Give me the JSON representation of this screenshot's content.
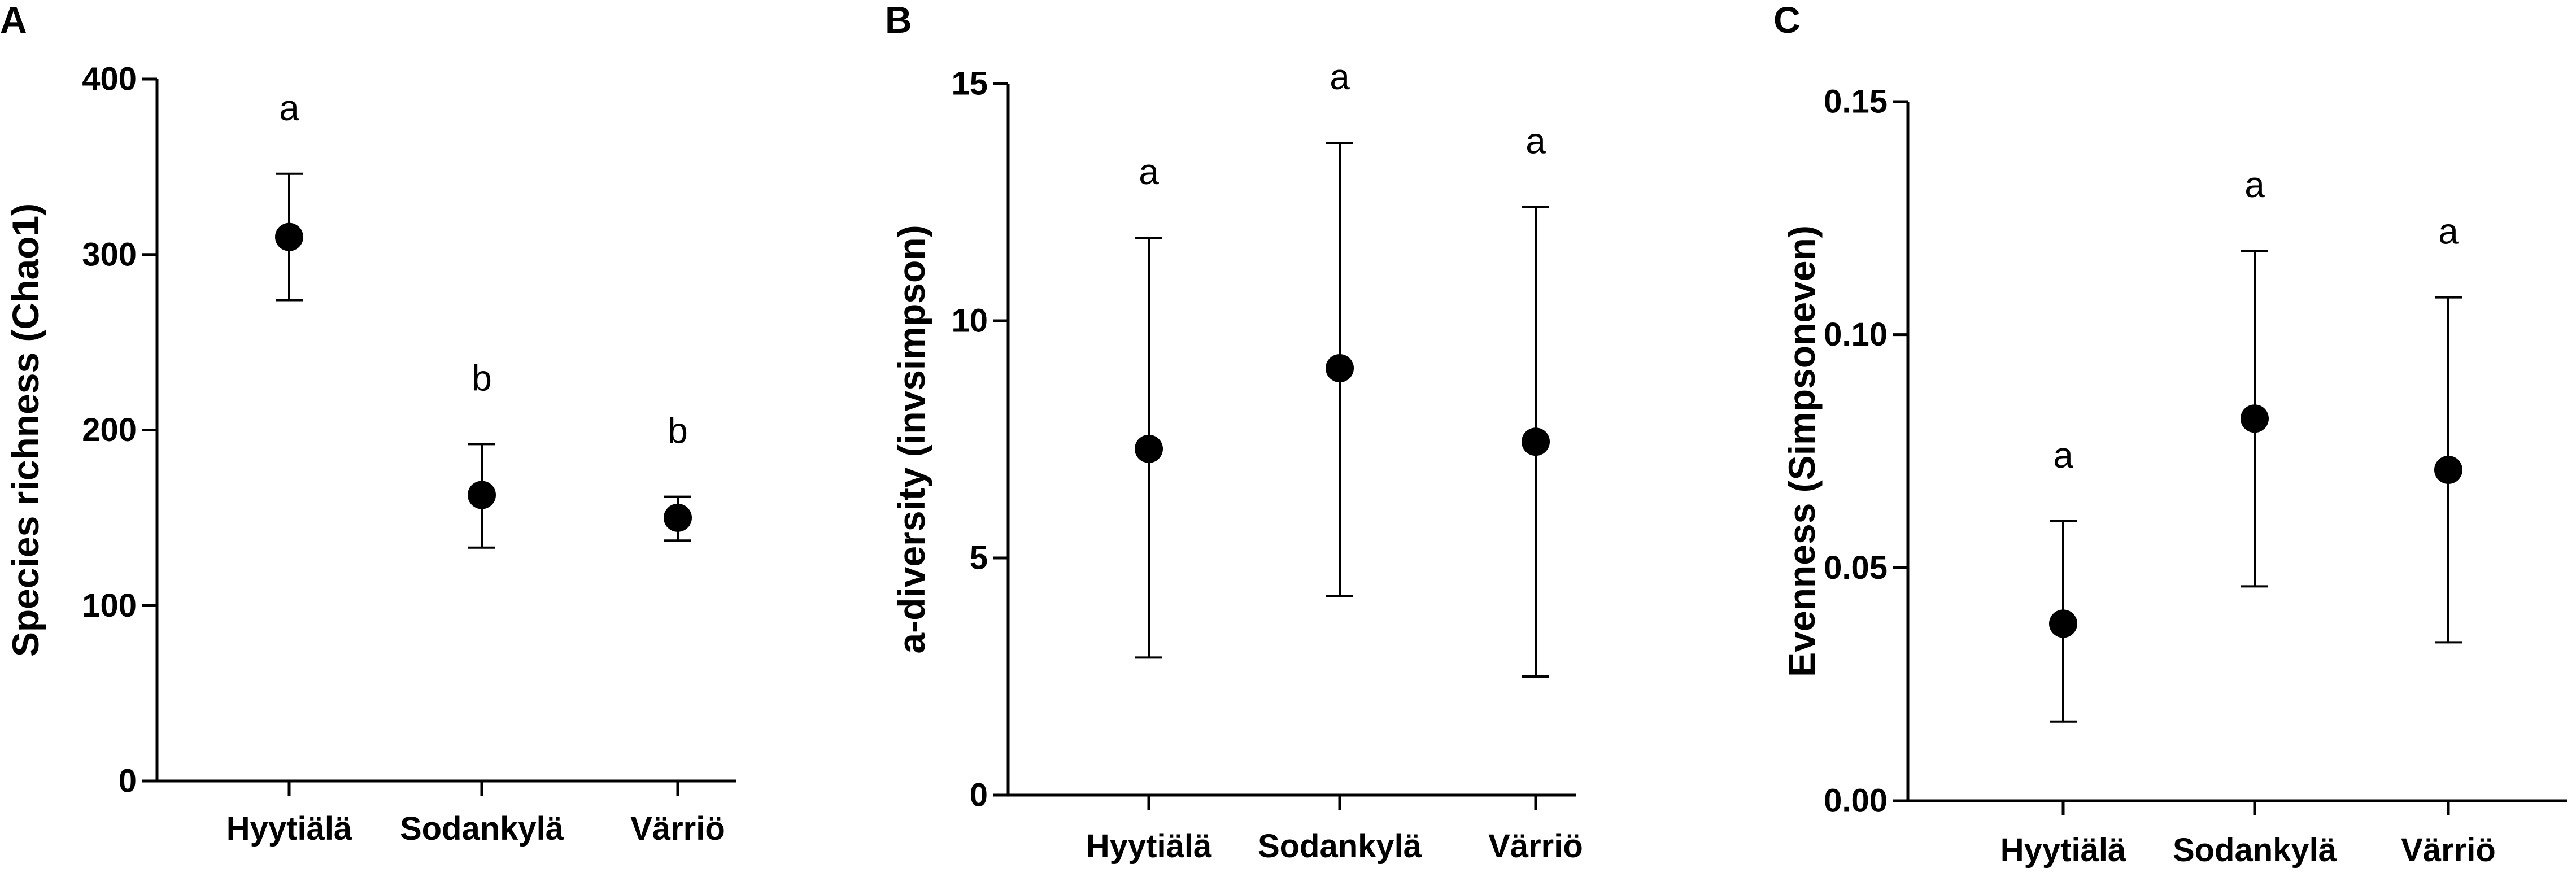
{
  "chart_data": [
    {
      "panel": "A",
      "type": "scatter",
      "ylabel": "Species richness (Chao1)",
      "xlabel": "",
      "categories": [
        "Hyytiälä",
        "Sodankylä",
        "Värriö"
      ],
      "ylim": [
        0,
        400
      ],
      "yticks": [
        0,
        100,
        200,
        300,
        400
      ],
      "ytick_labels": [
        "0",
        "100",
        "200",
        "300",
        "400"
      ],
      "series": [
        {
          "values": [
            310,
            163,
            150
          ],
          "error_low": [
            274,
            133,
            137
          ],
          "error_high": [
            346,
            192,
            162
          ],
          "significance": [
            "a",
            "b",
            "b"
          ]
        }
      ]
    },
    {
      "panel": "B",
      "type": "scatter",
      "ylabel": "a-diversity (invsimpson)",
      "xlabel": "",
      "categories": [
        "Hyytiälä",
        "Sodankylä",
        "Värriö"
      ],
      "ylim": [
        0,
        15
      ],
      "yticks": [
        0,
        5,
        10,
        15
      ],
      "ytick_labels": [
        "0",
        "5",
        "10",
        "15"
      ],
      "series": [
        {
          "values": [
            7.3,
            9.0,
            7.45
          ],
          "error_low": [
            2.9,
            4.2,
            2.5
          ],
          "error_high": [
            11.75,
            13.75,
            12.4
          ],
          "significance": [
            "a",
            "a",
            "a"
          ]
        }
      ]
    },
    {
      "panel": "C",
      "type": "scatter",
      "ylabel": "Evenness (Simpsoneven)",
      "xlabel": "",
      "categories": [
        "Hyytiälä",
        "Sodankylä",
        "Värriö"
      ],
      "ylim": [
        0,
        0.15
      ],
      "yticks": [
        0,
        0.05,
        0.1,
        0.15
      ],
      "ytick_labels": [
        "0.00",
        "0.05",
        "0.10",
        "0.15"
      ],
      "series": [
        {
          "values": [
            0.038,
            0.082,
            0.071
          ],
          "error_low": [
            0.017,
            0.046,
            0.034
          ],
          "error_high": [
            0.06,
            0.118,
            0.108
          ],
          "significance": [
            "a",
            "a",
            "a"
          ]
        }
      ]
    }
  ]
}
